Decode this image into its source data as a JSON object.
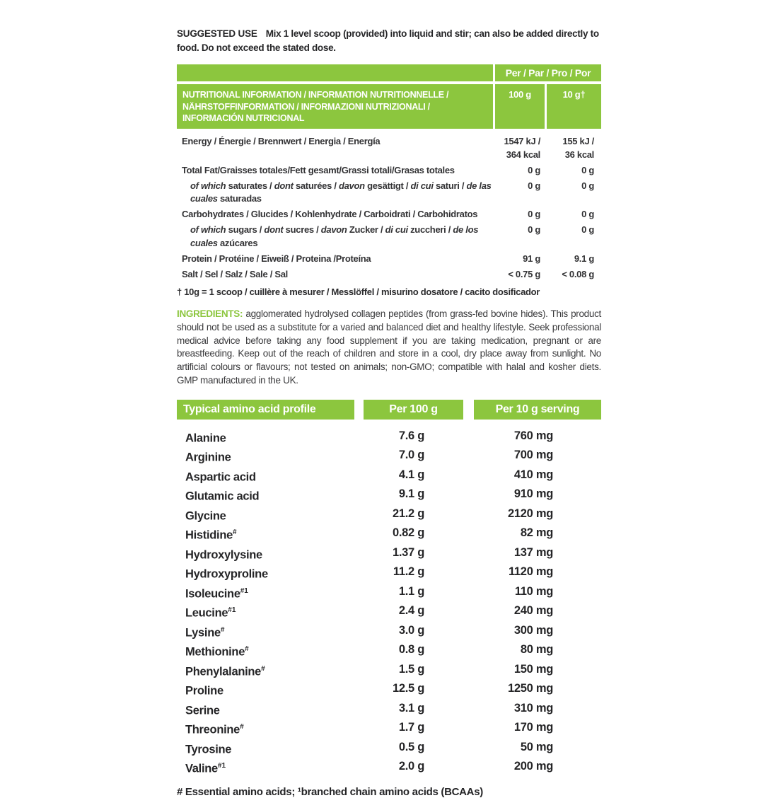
{
  "colors": {
    "green": "#8cc63e",
    "text": "#323234"
  },
  "suggested_use": {
    "label": "SUGGESTED USE",
    "text": "Mix 1 level scoop (provided) into liquid and stir; can also be added directly to food. Do not exceed the stated dose."
  },
  "nutrition_table": {
    "per_header": "Per / Par / Pro / Por",
    "title": "NUTRITIONAL INFORMATION / INFORMATION NUTRITIONNELLE / NÄHRSTOFFINFORMATION / INFORMAZIONI NUTRIZIONALI / INFORMACIÓN NUTRICIONAL",
    "col_100g": "100 g",
    "col_10g": "10 g†",
    "rows": [
      {
        "label": [
          {
            "t": "Energy / Énergie / Brennwert / Energia / Energía"
          }
        ],
        "per100": "1547 kJ /\n364 kcal",
        "per10": "155 kJ /\n36 kcal"
      },
      {
        "label": [
          {
            "t": "Total Fat/Graisses totales/Fett gesamt/Grassi totali/Grasas totales"
          }
        ],
        "per100": "0 g",
        "per10": "0 g"
      },
      {
        "label": [
          {
            "t": "of which",
            "i": true
          },
          {
            "t": " saturates / "
          },
          {
            "t": "dont",
            "i": true
          },
          {
            "t": " saturées / "
          },
          {
            "t": "davon",
            "i": true
          },
          {
            "t": " gesättigt / "
          },
          {
            "t": "di cui",
            "i": true
          },
          {
            "t": " saturi / "
          },
          {
            "t": "de las cuales",
            "i": true
          },
          {
            "t": " saturadas"
          }
        ],
        "per100": "0 g",
        "per10": "0 g"
      },
      {
        "label": [
          {
            "t": "Carbohydrates / Glucides / Kohlenhydrate / Carboidrati / Carbohidratos"
          }
        ],
        "per100": "0 g",
        "per10": "0 g"
      },
      {
        "label": [
          {
            "t": "of which",
            "i": true
          },
          {
            "t": " sugars / "
          },
          {
            "t": "dont",
            "i": true
          },
          {
            "t": " sucres / "
          },
          {
            "t": "davon",
            "i": true
          },
          {
            "t": " Zucker / "
          },
          {
            "t": "di cui",
            "i": true
          },
          {
            "t": " zuccheri / "
          },
          {
            "t": "de los cuales",
            "i": true
          },
          {
            "t": " azúcares"
          }
        ],
        "per100": "0 g",
        "per10": "0 g"
      },
      {
        "label": [
          {
            "t": "Protein / Protéine / Eiweiß / Proteina /Proteína"
          }
        ],
        "per100": "91 g",
        "per10": "9.1 g"
      },
      {
        "label": [
          {
            "t": "Salt / Sel / Salz / Sale / Sal"
          }
        ],
        "per100": "< 0.75 g",
        "per10": "< 0.08 g"
      }
    ],
    "footnote": "† 10g = 1 scoop / cuillère à mesurer / Messlöffel / misurino dosatore / cacito dosificador"
  },
  "ingredients": {
    "label": "INGREDIENTS:",
    "text": "agglomerated hydrolysed collagen peptides (from grass-fed bovine hides). This product should not be used as a substitute for a varied and balanced diet and healthy lifestyle. Seek professional medical advice before taking any food supplement if you are taking medication, pregnant or are breastfeeding. Keep out of the reach of children and store in a cool, dry place away from sunlight. No artificial colours or flavours; not tested on animals; non-GMO; compatible with halal and kosher diets. GMP manufactured in the UK."
  },
  "amino_table": {
    "headers": [
      "Typical amino acid profile",
      "Per 100 g",
      "Per 10 g serving"
    ],
    "rows": [
      {
        "name": "Alanine",
        "sup": "",
        "per100": "7.6 g",
        "per10": "760 mg"
      },
      {
        "name": "Arginine",
        "sup": "",
        "per100": "7.0 g",
        "per10": "700 mg"
      },
      {
        "name": "Aspartic acid",
        "sup": "",
        "per100": "4.1 g",
        "per10": "410 mg"
      },
      {
        "name": "Glutamic acid",
        "sup": "",
        "per100": "9.1 g",
        "per10": "910 mg"
      },
      {
        "name": "Glycine",
        "sup": "",
        "per100": "21.2 g",
        "per10": "2120 mg"
      },
      {
        "name": "Histidine",
        "sup": "#",
        "per100": "0.82 g",
        "per10": "82 mg"
      },
      {
        "name": "Hydroxylysine",
        "sup": "",
        "per100": "1.37 g",
        "per10": "137 mg"
      },
      {
        "name": "Hydroxyproline",
        "sup": "",
        "per100": "11.2 g",
        "per10": "1120 mg"
      },
      {
        "name": "Isoleucine",
        "sup": "#1",
        "per100": "1.1 g",
        "per10": "110 mg"
      },
      {
        "name": "Leucine",
        "sup": "#1",
        "per100": "2.4 g",
        "per10": "240 mg"
      },
      {
        "name": "Lysine",
        "sup": "#",
        "per100": "3.0 g",
        "per10": "300 mg"
      },
      {
        "name": "Methionine",
        "sup": "#",
        "per100": "0.8 g",
        "per10": "80 mg"
      },
      {
        "name": "Phenylalanine",
        "sup": "#",
        "per100": "1.5 g",
        "per10": "150 mg"
      },
      {
        "name": "Proline",
        "sup": "",
        "per100": "12.5 g",
        "per10": "1250 mg"
      },
      {
        "name": "Serine",
        "sup": "",
        "per100": "3.1 g",
        "per10": "310 mg"
      },
      {
        "name": "Threonine",
        "sup": "#",
        "per100": "1.7 g",
        "per10": "170 mg"
      },
      {
        "name": "Tyrosine",
        "sup": "",
        "per100": "0.5 g",
        "per10": "50 mg"
      },
      {
        "name": "Valine",
        "sup": "#1",
        "per100": "2.0 g",
        "per10": "200 mg"
      }
    ],
    "footnote": "# Essential amino acids; ¹branched chain amino acids (BCAAs)"
  }
}
